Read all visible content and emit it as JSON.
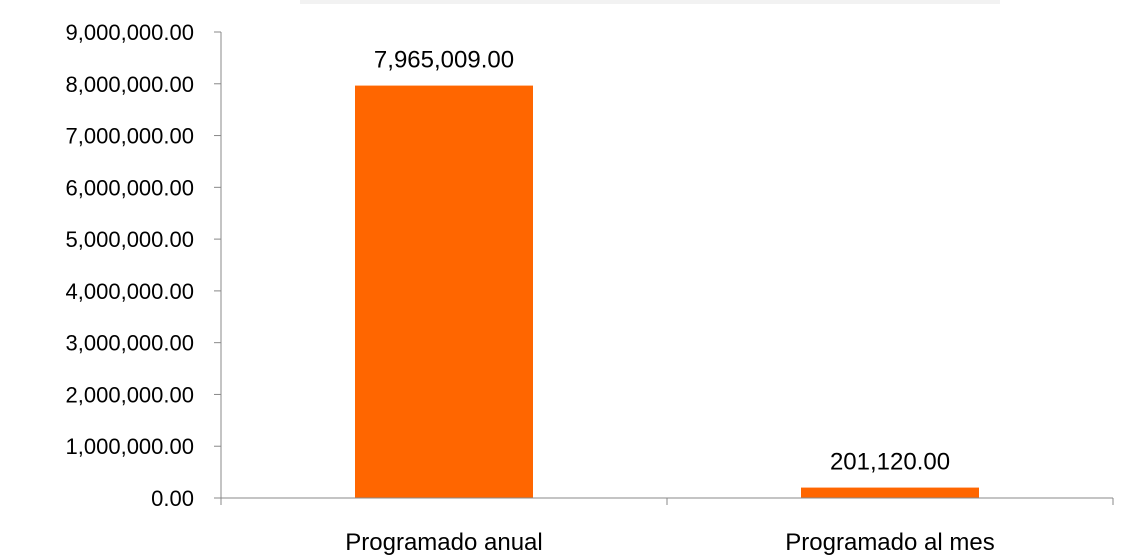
{
  "chart_data": {
    "type": "bar",
    "categories": [
      "Programado anual",
      "Programado al mes"
    ],
    "values": [
      7965009.0,
      201120.0
    ],
    "data_labels": [
      "7,965,009.00",
      "201,120.00"
    ],
    "ylim": [
      0,
      9000000
    ],
    "y_ticks": [
      0,
      1000000,
      2000000,
      3000000,
      4000000,
      5000000,
      6000000,
      7000000,
      8000000,
      9000000
    ],
    "y_tick_labels": [
      "0.00",
      "1,000,000.00",
      "2,000,000.00",
      "3,000,000.00",
      "4,000,000.00",
      "5,000,000.00",
      "6,000,000.00",
      "7,000,000.00",
      "8,000,000.00",
      "9,000,000.00"
    ],
    "title": "",
    "xlabel": "",
    "ylabel": "",
    "grid": false,
    "legend": "none",
    "bar_color": "#FF6600"
  }
}
